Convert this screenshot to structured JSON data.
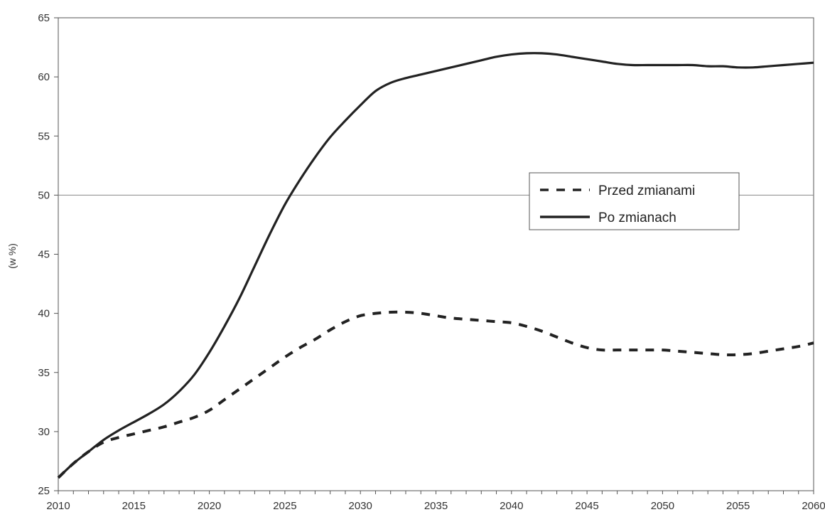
{
  "chart_data": {
    "type": "line",
    "title": "",
    "xlabel": "",
    "ylabel": "(w %)",
    "xlim": [
      2010,
      2060
    ],
    "ylim": [
      25,
      65
    ],
    "x_ticks": [
      2010,
      2015,
      2020,
      2025,
      2030,
      2035,
      2040,
      2045,
      2050,
      2055,
      2060
    ],
    "y_ticks": [
      25,
      30,
      35,
      40,
      45,
      50,
      55,
      60,
      65
    ],
    "reference_line": 50,
    "grid": false,
    "legend_position": "right",
    "x": [
      2010,
      2011,
      2012,
      2013,
      2014,
      2015,
      2016,
      2017,
      2018,
      2019,
      2020,
      2021,
      2022,
      2023,
      2024,
      2025,
      2026,
      2027,
      2028,
      2029,
      2030,
      2031,
      2032,
      2033,
      2034,
      2035,
      2036,
      2037,
      2038,
      2039,
      2040,
      2041,
      2042,
      2043,
      2044,
      2045,
      2046,
      2047,
      2048,
      2049,
      2050,
      2051,
      2052,
      2053,
      2054,
      2055,
      2056,
      2057,
      2058,
      2059,
      2060
    ],
    "series": [
      {
        "name": "Przed zmianami",
        "style": "dashed",
        "color": "#222222",
        "values": [
          26.1,
          27.3,
          28.3,
          29.1,
          29.5,
          29.8,
          30.1,
          30.4,
          30.8,
          31.2,
          31.8,
          32.7,
          33.6,
          34.5,
          35.4,
          36.3,
          37.1,
          37.8,
          38.6,
          39.3,
          39.8,
          40.0,
          40.1,
          40.1,
          40.0,
          39.8,
          39.6,
          39.5,
          39.4,
          39.3,
          39.2,
          38.9,
          38.5,
          38.0,
          37.5,
          37.1,
          36.9,
          36.9,
          36.9,
          36.9,
          36.9,
          36.8,
          36.7,
          36.6,
          36.5,
          36.5,
          36.6,
          36.8,
          37.0,
          37.2,
          37.5
        ]
      },
      {
        "name": "Po zmianach",
        "style": "solid",
        "color": "#222222",
        "values": [
          26.1,
          27.3,
          28.3,
          29.3,
          30.1,
          30.8,
          31.5,
          32.3,
          33.4,
          34.8,
          36.7,
          38.9,
          41.3,
          44.0,
          46.7,
          49.2,
          51.3,
          53.2,
          54.9,
          56.3,
          57.6,
          58.8,
          59.5,
          59.9,
          60.2,
          60.5,
          60.8,
          61.1,
          61.4,
          61.7,
          61.9,
          62.0,
          62.0,
          61.9,
          61.7,
          61.5,
          61.3,
          61.1,
          61.0,
          61.0,
          61.0,
          61.0,
          61.0,
          60.9,
          60.9,
          60.8,
          60.8,
          60.9,
          61.0,
          61.1,
          61.2
        ]
      }
    ]
  }
}
